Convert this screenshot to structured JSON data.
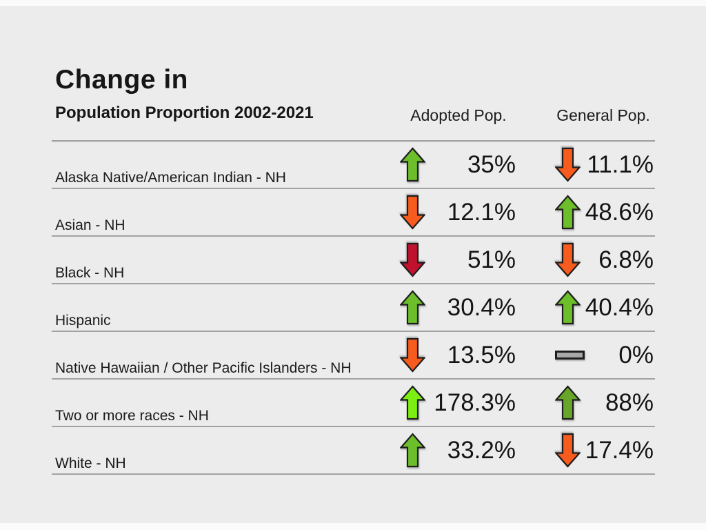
{
  "header": {
    "title_line1": "Change in",
    "title_line2": "Population Proportion 2002-2021"
  },
  "table": {
    "columns": [
      "Adopted Pop.",
      "General Pop."
    ],
    "rows": [
      {
        "label": "Alaska Native/American Indian - NH",
        "adopted": {
          "dir": "up",
          "color": "green",
          "value": "35%"
        },
        "general": {
          "dir": "down",
          "color": "orange",
          "value": "11.1%"
        }
      },
      {
        "label": "Asian - NH",
        "adopted": {
          "dir": "down",
          "color": "orange",
          "value": "12.1%"
        },
        "general": {
          "dir": "up",
          "color": "green",
          "value": "48.6%"
        }
      },
      {
        "label": "Black - NH",
        "adopted": {
          "dir": "down",
          "color": "darkred",
          "value": "51%"
        },
        "general": {
          "dir": "down",
          "color": "orange",
          "value": "6.8%"
        }
      },
      {
        "label": "Hispanic",
        "adopted": {
          "dir": "up",
          "color": "green",
          "value": "30.4%"
        },
        "general": {
          "dir": "up",
          "color": "green",
          "value": "40.4%"
        }
      },
      {
        "label": "Native Hawaiian / Other Pacific Islanders - NH",
        "adopted": {
          "dir": "down",
          "color": "orange",
          "value": "13.5%"
        },
        "general": {
          "dir": "flat",
          "color": "flat_gray",
          "value": "0%"
        }
      },
      {
        "label": "Two or more races - NH",
        "adopted": {
          "dir": "up",
          "color": "lime",
          "value": "178.3%"
        },
        "general": {
          "dir": "up",
          "color": "green_dark",
          "value": "88%"
        }
      },
      {
        "label": "White - NH",
        "adopted": {
          "dir": "up",
          "color": "green",
          "value": "33.2%"
        },
        "general": {
          "dir": "down",
          "color": "orange",
          "value": "17.4%"
        }
      }
    ]
  },
  "colors": {
    "green": "#6CBE2B",
    "green_dark": "#68A62B",
    "lime": "#7DEE12",
    "orange": "#F75B1E",
    "darkred": "#C0122F",
    "flat_gray": "#A8A8A8",
    "outline": "#1D1D1D",
    "background": "#ECECEC",
    "line": "#A2A2A2",
    "text": "#161616"
  },
  "chart_data": {
    "type": "table",
    "title": "Change in Population Proportion 2002-2021",
    "categories": [
      "Alaska Native/American Indian - NH",
      "Asian - NH",
      "Black - NH",
      "Hispanic",
      "Native Hawaiian / Other Pacific Islanders - NH",
      "Two or more races - NH",
      "White - NH"
    ],
    "series": [
      {
        "name": "Adopted Pop.",
        "values": [
          35,
          -12.1,
          -51,
          30.4,
          -13.5,
          178.3,
          33.2
        ],
        "labels": [
          "35%",
          "12.1%",
          "51%",
          "30.4%",
          "13.5%",
          "178.3%",
          "33.2%"
        ],
        "directions": [
          "up",
          "down",
          "down",
          "up",
          "down",
          "up",
          "up"
        ]
      },
      {
        "name": "General Pop.",
        "values": [
          -11.1,
          48.6,
          -6.8,
          40.4,
          0,
          88,
          -17.4
        ],
        "labels": [
          "11.1%",
          "48.6%",
          "6.8%",
          "40.4%",
          "0%",
          "88%",
          "17.4%"
        ],
        "directions": [
          "down",
          "up",
          "down",
          "up",
          "flat",
          "up",
          "down"
        ]
      }
    ]
  }
}
